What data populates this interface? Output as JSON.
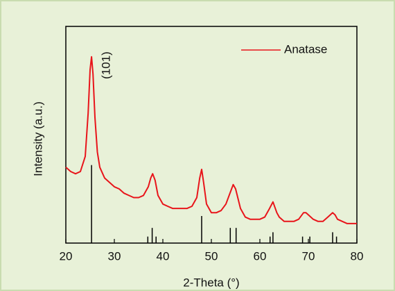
{
  "chart_data": {
    "type": "line",
    "x_label": "2-Theta (°)",
    "y_label": "Intensity (a.u.)",
    "annotation": "(101)",
    "xlim": [
      20,
      80
    ],
    "xticks": [
      20,
      30,
      40,
      50,
      60,
      70,
      80
    ],
    "ylim": [
      0,
      100
    ],
    "legend": "upper right",
    "x": [
      20,
      21,
      22,
      23,
      24,
      24.6,
      25,
      25.3,
      25.6,
      26,
      26.5,
      27,
      28,
      29,
      30,
      31,
      32,
      33,
      34,
      35,
      36,
      37,
      37.5,
      37.9,
      38.4,
      39,
      40,
      41,
      42,
      43,
      44,
      45,
      46,
      47,
      47.6,
      48,
      48.4,
      49,
      50,
      51,
      52,
      53,
      54,
      54.5,
      55,
      56,
      57,
      58,
      59,
      60,
      61,
      62,
      62.7,
      63.5,
      64,
      65,
      66,
      67,
      68,
      69,
      69.5,
      70,
      71,
      72,
      73,
      74,
      75,
      75.5,
      76,
      77,
      78,
      79,
      80
    ],
    "series": [
      {
        "name": "Anatase",
        "color": "#e8141a",
        "values": [
          35,
          33,
          32,
          33,
          40,
          60,
          80,
          86,
          78,
          58,
          42,
          35,
          30,
          28,
          26,
          25,
          23,
          22,
          21,
          21,
          22,
          26,
          30,
          32,
          29,
          22,
          18,
          17,
          16,
          16,
          16,
          16,
          17,
          21,
          30,
          34,
          28,
          18,
          14,
          14,
          15,
          18,
          24,
          27,
          25,
          16,
          12,
          11,
          11,
          11,
          12,
          16,
          19,
          14,
          12,
          10,
          10,
          10,
          11,
          14,
          14,
          13,
          11,
          10,
          10,
          12,
          14,
          13,
          11,
          10,
          9,
          9,
          9
        ]
      }
    ],
    "reference": {
      "color": "#000000",
      "x": [
        25.3,
        36.9,
        37.8,
        38.6,
        48.0,
        53.9,
        55.1,
        62.1,
        62.7,
        68.8,
        70.3,
        75.0,
        75.8
      ],
      "values": [
        36,
        3,
        7,
        3,
        12.5,
        7,
        7,
        3,
        5,
        3,
        3,
        5,
        3
      ]
    }
  }
}
